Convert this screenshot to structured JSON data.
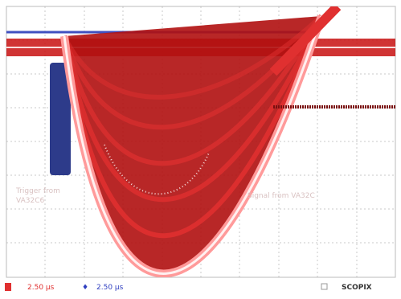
{
  "labels": {
    "trigger": [
      "Trigger from",
      "VA32C6"
    ],
    "signal": "Signal from VA32C"
  },
  "footer": {
    "ch1": "2.50 μs",
    "ch2": "2.50 μs",
    "brand": "SCOPIX"
  }
}
